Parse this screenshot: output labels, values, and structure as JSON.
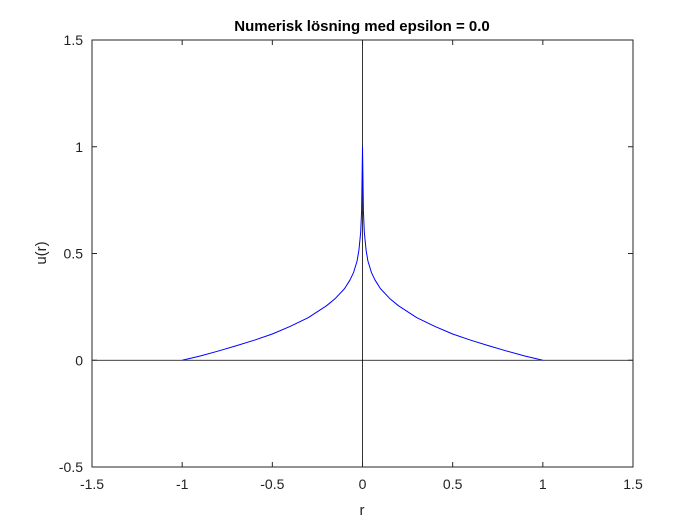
{
  "chart_data": {
    "type": "line",
    "title": "Numerisk lösning med epsilon = 0.0",
    "xlabel": "r",
    "ylabel": "u(r)",
    "xlim": [
      -1.5,
      1.5
    ],
    "ylim": [
      -0.5,
      1.5
    ],
    "xticks": [
      "-1.5",
      "-1",
      "-0.5",
      "0",
      "0.5",
      "1",
      "1.5"
    ],
    "yticks": [
      "-0.5",
      "0",
      "0.5",
      "1",
      "1.5"
    ],
    "grid": false,
    "reference_lines": {
      "x": 0,
      "y": 0,
      "color": "#000000"
    },
    "series": [
      {
        "color": "#0000ff",
        "x": [
          -1.0,
          -0.9,
          -0.8,
          -0.7,
          -0.6,
          -0.5,
          -0.4,
          -0.3,
          -0.2,
          -0.15,
          -0.1,
          -0.07,
          -0.05,
          -0.03,
          -0.02,
          -0.01,
          -0.005,
          0.0,
          0.005,
          0.01,
          0.02,
          0.03,
          0.05,
          0.07,
          0.1,
          0.15,
          0.2,
          0.3,
          0.4,
          0.5,
          0.6,
          0.7,
          0.8,
          0.9,
          1.0
        ],
        "y": [
          0.0,
          0.02,
          0.043,
          0.068,
          0.094,
          0.123,
          0.159,
          0.2,
          0.255,
          0.29,
          0.335,
          0.375,
          0.41,
          0.465,
          0.515,
          0.6,
          0.7,
          1.0,
          0.7,
          0.6,
          0.515,
          0.465,
          0.41,
          0.375,
          0.335,
          0.29,
          0.255,
          0.2,
          0.159,
          0.123,
          0.094,
          0.068,
          0.043,
          0.02,
          0.0
        ]
      }
    ]
  }
}
